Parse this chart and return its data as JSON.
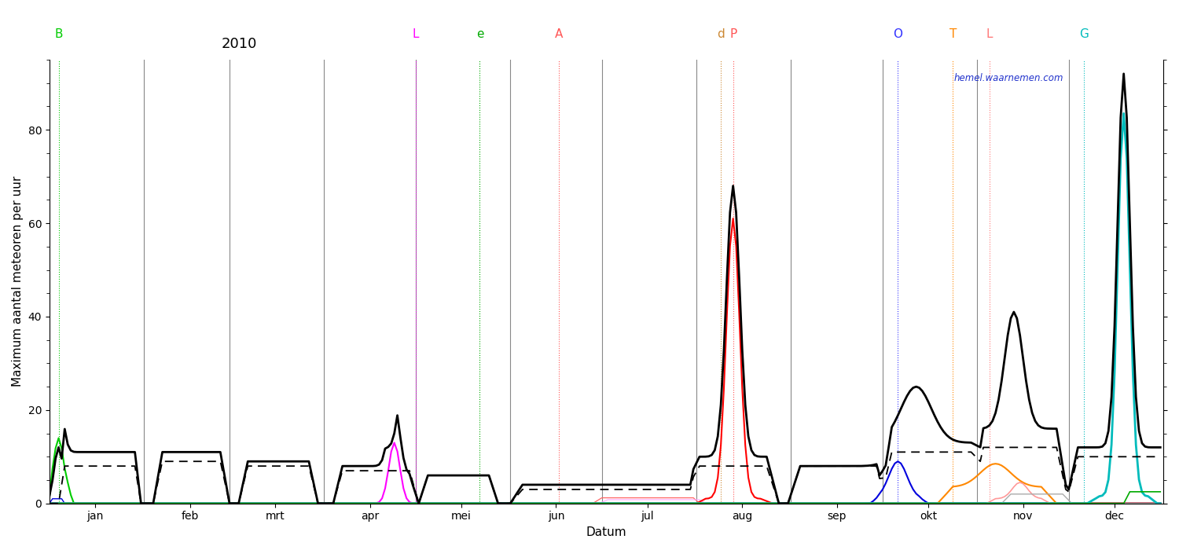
{
  "title": "2010",
  "xlabel": "Datum",
  "ylabel": "Maximum aantal meteoren per uur",
  "ylim": [
    0,
    95
  ],
  "yticks": [
    0,
    20,
    40,
    60,
    80
  ],
  "watermark": "hemel.waarnemen.com",
  "month_labels": [
    "jan",
    "feb",
    "mrt",
    "apr",
    "mei",
    "jun",
    "jul",
    "aug",
    "sep",
    "okt",
    "nov",
    "dec"
  ],
  "month_starts": [
    0,
    31,
    59,
    90,
    120,
    151,
    181,
    212,
    243,
    273,
    304,
    334
  ],
  "month_mids": [
    15,
    46,
    74,
    105,
    135,
    166,
    196,
    227,
    258,
    288,
    319,
    349
  ],
  "shower_markers": [
    {
      "day": 3,
      "label": "B",
      "color": "#00cc00"
    },
    {
      "day": 120,
      "label": "L",
      "color": "#ff00ff"
    },
    {
      "day": 141,
      "label": "e",
      "color": "#00aa00"
    },
    {
      "day": 167,
      "label": "A",
      "color": "#ff5555"
    },
    {
      "day": 220,
      "label": "d",
      "color": "#cc8833"
    },
    {
      "day": 224,
      "label": "P",
      "color": "#ff5555"
    },
    {
      "day": 278,
      "label": "O",
      "color": "#3333ff"
    },
    {
      "day": 296,
      "label": "T",
      "color": "#ff8800"
    },
    {
      "day": 308,
      "label": "L",
      "color": "#ff7777"
    },
    {
      "day": 339,
      "label": "G",
      "color": "#00bbbb"
    }
  ],
  "figsize": [
    15.0,
    7.0
  ],
  "dpi": 100
}
